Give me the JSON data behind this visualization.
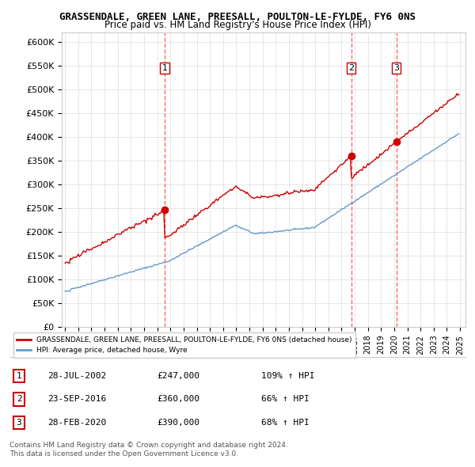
{
  "title": "GRASSENDALE, GREEN LANE, PREESALL, POULTON-LE-FYLDE, FY6 0NS",
  "subtitle": "Price paid vs. HM Land Registry's House Price Index (HPI)",
  "ylabel": "",
  "ylim": [
    0,
    620000
  ],
  "yticks": [
    0,
    50000,
    100000,
    150000,
    200000,
    250000,
    300000,
    350000,
    400000,
    450000,
    500000,
    550000,
    600000
  ],
  "ytick_labels": [
    "£0",
    "£50K",
    "£100K",
    "£150K",
    "£200K",
    "£250K",
    "£300K",
    "£350K",
    "£400K",
    "£450K",
    "£500K",
    "£550K",
    "£600K"
  ],
  "sale_dates": [
    "2002-07-28",
    "2016-09-23",
    "2020-02-28"
  ],
  "sale_prices": [
    247000,
    360000,
    390000
  ],
  "sale_labels": [
    "1",
    "2",
    "3"
  ],
  "sale_info": [
    {
      "label": "1",
      "date": "28-JUL-2002",
      "price": "£247,000",
      "hpi": "109% ↑ HPI"
    },
    {
      "label": "2",
      "date": "23-SEP-2016",
      "price": "£360,000",
      "hpi": "66% ↑ HPI"
    },
    {
      "label": "3",
      "date": "28-FEB-2020",
      "price": "£390,000",
      "hpi": "68% ↑ HPI"
    }
  ],
  "line_color_red": "#cc0000",
  "line_color_blue": "#6699cc",
  "legend_label_red": "GRASSENDALE, GREEN LANE, PREESALL, POULTON-LE-FYLDE, FY6 0NS (detached house)",
  "legend_label_blue": "HPI: Average price, detached house, Wyre",
  "footer_line1": "Contains HM Land Registry data © Crown copyright and database right 2024.",
  "footer_line2": "This data is licensed under the Open Government Licence v3.0.",
  "background_color": "#ffffff",
  "grid_color": "#dddddd",
  "vline_color": "#ff6666",
  "marker_color_red": "#cc0000",
  "marker_color_blue": "#6699cc"
}
